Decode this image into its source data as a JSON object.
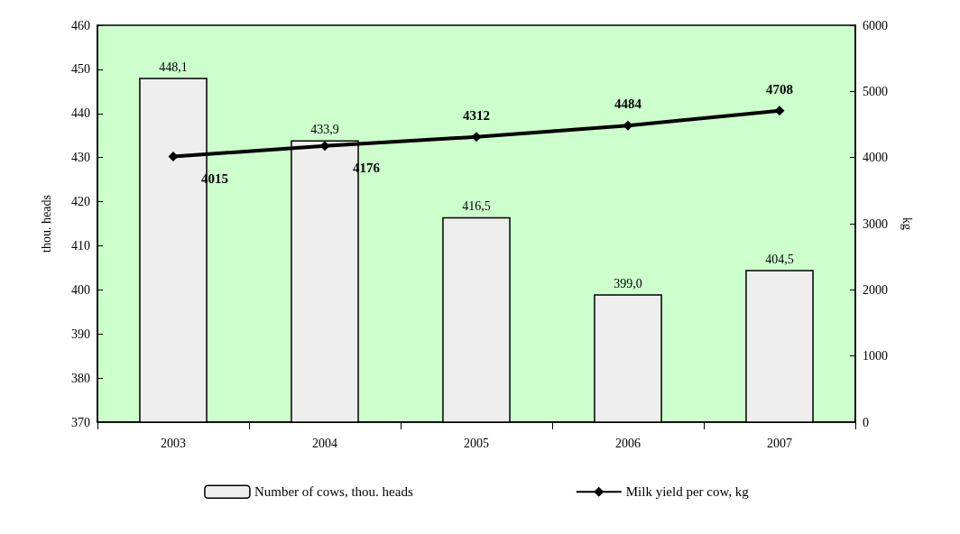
{
  "chart_data": {
    "type": "bar",
    "categories": [
      "2003",
      "2004",
      "2005",
      "2006",
      "2007"
    ],
    "series": [
      {
        "name": "Number of cows, thou. heads",
        "color": "#eeeeee",
        "values": [
          448.1,
          433.9,
          416.5,
          399.0,
          404.5
        ],
        "value_labels": [
          "448,1",
          "433,9",
          "416,5",
          "399,0",
          "404,5"
        ]
      },
      {
        "name": "Milk yield per cow, kg",
        "type": "line",
        "axis": "y2",
        "color": "#000000",
        "values": [
          4015,
          4176,
          4312,
          4484,
          4708
        ],
        "value_labels": [
          "4015",
          "4176",
          "4312",
          "4484",
          "4708"
        ]
      }
    ],
    "ylabel": "thou. heads",
    "y2label": "kg",
    "ylim": [
      370,
      460
    ],
    "yticks": [
      370,
      380,
      390,
      400,
      410,
      420,
      430,
      440,
      450,
      460
    ],
    "y2lim": [
      0,
      6000
    ],
    "y2ticks": [
      0,
      1000,
      2000,
      3000,
      4000,
      5000,
      6000
    ],
    "legend": "bottom",
    "marker": "diamond",
    "line_style": "solid"
  }
}
